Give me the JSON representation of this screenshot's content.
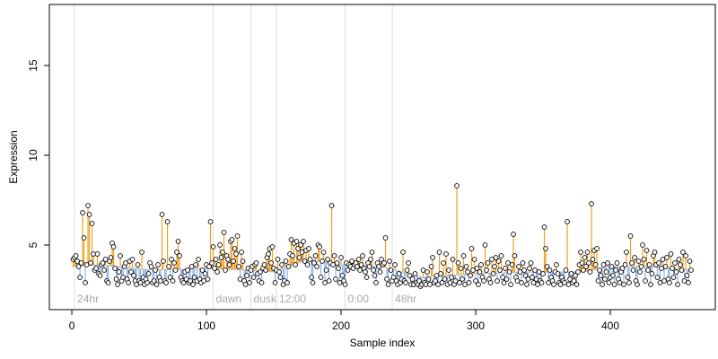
{
  "chart_data": {
    "type": "lollipop",
    "xlabel": "Sample index",
    "ylabel": "Expression",
    "xlim": [
      -16.7,
      478
    ],
    "ylim": [
      1.4,
      18.4
    ],
    "xticks": [
      0,
      100,
      200,
      300,
      400
    ],
    "yticks": [
      5,
      10,
      15
    ],
    "above_color": "#f0a020",
    "below_color": "#8fb0e8",
    "point_color": "#000000",
    "baseline_color": "#bbbbbb",
    "baseline": {
      "x": [
        0,
        20,
        60,
        100,
        130,
        150,
        175,
        200,
        230,
        260,
        300,
        340,
        380,
        400,
        430,
        462
      ],
      "values": [
        3.8,
        3.9,
        3.6,
        3.7,
        3.6,
        3.5,
        4.2,
        3.9,
        3.8,
        3.2,
        3.4,
        3.5,
        3.5,
        3.8,
        3.8,
        3.6
      ]
    },
    "annotations": [
      {
        "x": 2,
        "label": "24hr"
      },
      {
        "x": 105,
        "label": "dawn"
      },
      {
        "x": 133,
        "label": "dusk"
      },
      {
        "x": 152,
        "label": "12:00"
      },
      {
        "x": 203,
        "label": "0:00"
      },
      {
        "x": 238,
        "label": "48hr"
      }
    ],
    "values": [
      4.2,
      4.3,
      4.4,
      4.1,
      3.8,
      3.2,
      4.0,
      6.8,
      5.4,
      2.9,
      3.9,
      7.2,
      6.7,
      4.0,
      6.2,
      4.5,
      3.6,
      3.7,
      4.5,
      3.4,
      3.3,
      3.9,
      4.0,
      3.6,
      4.2,
      3.0,
      2.9,
      4.1,
      4.3,
      5.1,
      4.9,
      3.7,
      3.1,
      2.8,
      3.5,
      4.4,
      3.0,
      3.2,
      3.8,
      4.0,
      3.1,
      2.9,
      4.1,
      3.5,
      4.2,
      3.3,
      3.0,
      2.8,
      3.9,
      3.0,
      2.9,
      4.6,
      3.2,
      2.8,
      3.1,
      2.9,
      3.4,
      4.0,
      3.8,
      2.9,
      3.0,
      3.6,
      2.8,
      3.9,
      3.2,
      3.0,
      6.7,
      4.1,
      3.0,
      2.9,
      6.3,
      3.8,
      3.2,
      4.2,
      3.0,
      4.0,
      3.6,
      4.6,
      5.2,
      4.4,
      3.2,
      3.0,
      2.9,
      3.5,
      3.1,
      3.6,
      2.9,
      3.0,
      3.8,
      2.8,
      3.2,
      3.9,
      3.0,
      4.2,
      3.1,
      2.9,
      3.6,
      3.0,
      3.4,
      3.9,
      3.1,
      3.8,
      6.3,
      4.0,
      4.9,
      3.7,
      4.2,
      3.5,
      3.9,
      5.0,
      4.3,
      4.6,
      5.7,
      3.6,
      4.4,
      4.2,
      3.9,
      5.2,
      5.3,
      4.1,
      4.8,
      4.5,
      5.5,
      3.8,
      3.1,
      4.6,
      4.1,
      3.0,
      2.8,
      3.3,
      3.7,
      2.9,
      3.6,
      3.8,
      3.2,
      3.9,
      4.0,
      3.4,
      3.0,
      3.5,
      2.9,
      3.7,
      3.9,
      3.6,
      4.3,
      4.5,
      4.8,
      4.0,
      4.9,
      3.7,
      2.9,
      3.6,
      4.2,
      3.5,
      3.2,
      3.9,
      2.8,
      3.0,
      4.1,
      2.9,
      3.8,
      4.5,
      5.3,
      4.4,
      5.1,
      3.9,
      5.2,
      4.8,
      4.3,
      5.0,
      4.6,
      5.2,
      4.1,
      4.7,
      3.9,
      4.8,
      4.2,
      3.2,
      2.9,
      4.0,
      4.4,
      3.8,
      5.0,
      4.9,
      3.2,
      4.1,
      4.6,
      2.9,
      3.6,
      4.2,
      3.0,
      4.0,
      7.2,
      3.9,
      4.4,
      3.1,
      4.0,
      3.7,
      2.9,
      4.3,
      3.3,
      3.0,
      2.8,
      4.0,
      3.6,
      3.9,
      3.8,
      4.1,
      3.7,
      3.9,
      4.0,
      3.8,
      4.2,
      3.6,
      3.9,
      4.4,
      3.7,
      3.5,
      3.2,
      4.0,
      3.8,
      4.2,
      4.6,
      3.6,
      3.3,
      2.9,
      4.0,
      3.8,
      3.5,
      4.2,
      3.9,
      4.0,
      5.4,
      3.1,
      2.8,
      4.1,
      3.6,
      3.0,
      3.2,
      3.9,
      3.0,
      2.8,
      3.4,
      2.9,
      3.1,
      4.6,
      3.0,
      2.9,
      3.6,
      4.0,
      3.3,
      2.8,
      3.1,
      2.8,
      3.4,
      2.9,
      2.8,
      3.0,
      2.7,
      2.8,
      3.6,
      2.9,
      2.8,
      3.5,
      3.1,
      2.8,
      3.8,
      4.3,
      2.9,
      3.0,
      3.3,
      2.8,
      4.6,
      3.4,
      2.9,
      4.0,
      3.1,
      4.5,
      2.8,
      3.6,
      2.9,
      3.2,
      4.2,
      2.8,
      3.0,
      8.3,
      4.0,
      2.9,
      3.7,
      3.1,
      4.4,
      2.8,
      3.8,
      3.5,
      2.9,
      3.3,
      4.8,
      3.6,
      4.2,
      3.0,
      3.7,
      2.8,
      3.5,
      3.9,
      3.2,
      3.0,
      5.0,
      3.6,
      4.0,
      3.1,
      2.9,
      4.2,
      3.4,
      3.8,
      4.3,
      3.0,
      4.1,
      3.6,
      4.4,
      3.2,
      2.9,
      3.7,
      3.1,
      4.0,
      3.5,
      2.8,
      3.9,
      5.6,
      4.4,
      3.2,
      3.0,
      3.8,
      3.5,
      2.9,
      4.0,
      3.6,
      3.3,
      2.8,
      3.1,
      3.7,
      4.0,
      3.2,
      2.9,
      3.6,
      3.1,
      2.8,
      3.5,
      3.0,
      2.9,
      3.4,
      6.0,
      4.8,
      3.8,
      2.9,
      3.6,
      3.2,
      3.0,
      2.8,
      3.5,
      3.9,
      3.4,
      2.9,
      2.8,
      3.2,
      3.0,
      2.9,
      3.6,
      6.3,
      2.8,
      3.1,
      3.4,
      2.9,
      3.0,
      3.3,
      2.8,
      3.5,
      3.9,
      4.6,
      4.0,
      3.6,
      4.3,
      3.8,
      4.6,
      4.0,
      3.5,
      7.3,
      4.2,
      4.7,
      3.9,
      4.8,
      3.0,
      3.6,
      3.3,
      2.8,
      3.9,
      3.1,
      3.5,
      4.0,
      2.9,
      3.2,
      3.8,
      3.3,
      2.8,
      3.6,
      4.0,
      3.1,
      2.9,
      3.5,
      3.7,
      2.8,
      3.9,
      4.6,
      3.2,
      2.9,
      5.5,
      4.0,
      3.6,
      4.3,
      3.0,
      2.8,
      4.1,
      3.5,
      3.8,
      5.0,
      4.2,
      3.0,
      4.7,
      3.6,
      3.9,
      2.8,
      3.4,
      4.4,
      4.6,
      3.9,
      3.2,
      4.0,
      2.9,
      3.7,
      4.2,
      3.0,
      3.8,
      4.3,
      3.1,
      2.9,
      4.5,
      3.7,
      3.2,
      4.0,
      3.5,
      2.8,
      4.2,
      3.9,
      3.6,
      4.6,
      3.0,
      4.4,
      3.3,
      2.9,
      4.1,
      3.6
    ]
  }
}
